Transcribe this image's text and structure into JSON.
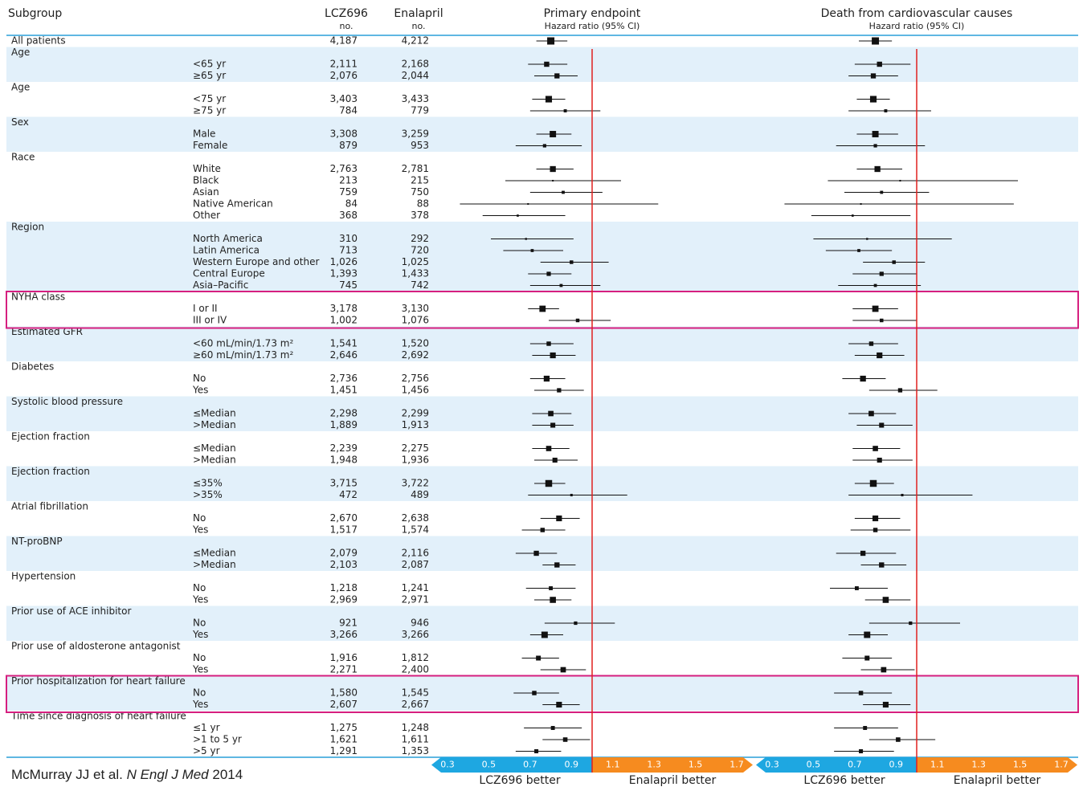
{
  "chart_data": {
    "type": "forest",
    "headers": {
      "subgroup": "Subgroup",
      "lcz": "LCZ696",
      "enal": "Enalapril",
      "no": "no."
    },
    "panels": [
      {
        "title": "Primary endpoint",
        "subtitle": "Hazard ratio (95% CI)",
        "better_left": "LCZ696 better",
        "better_right": "Enalapril better"
      },
      {
        "title": "Death from cardiovascular causes",
        "subtitle": "Hazard ratio (95% CI)",
        "better_left": "LCZ696 better",
        "better_right": "Enalapril better"
      }
    ],
    "xlim": [
      0.3,
      1.7
    ],
    "xticks": [
      0.3,
      0.5,
      0.7,
      0.9,
      1.1,
      1.3,
      1.5,
      1.7
    ],
    "reference": 1,
    "colors": {
      "better_left": "#1ea7e1",
      "better_right": "#f68b1f",
      "reference": "#e0201f",
      "band": "#e2f0fa",
      "highlight": "#d61f7f",
      "rule": "#2a9fd8"
    },
    "groups": [
      {
        "label": "All patients",
        "n": [
          "4,187",
          "4,212"
        ],
        "est": [
          [
            0.8,
            0.73,
            0.88
          ],
          [
            0.8,
            0.72,
            0.88
          ]
        ]
      },
      {
        "label": "Age",
        "items": [
          {
            "label": "<65 yr",
            "n": [
              "2,111",
              "2,168"
            ],
            "est": [
              [
                0.78,
                0.69,
                0.88
              ],
              [
                0.82,
                0.7,
                0.97
              ]
            ]
          },
          {
            "label": "≥65 yr",
            "n": [
              "2,076",
              "2,044"
            ],
            "est": [
              [
                0.83,
                0.72,
                0.93
              ],
              [
                0.79,
                0.67,
                0.91
              ]
            ]
          }
        ]
      },
      {
        "label": "Age",
        "items": [
          {
            "label": "<75 yr",
            "n": [
              "3,403",
              "3,433"
            ],
            "est": [
              [
                0.79,
                0.71,
                0.87
              ],
              [
                0.79,
                0.71,
                0.87
              ]
            ]
          },
          {
            "label": "≥75 yr",
            "n": [
              "784",
              "779"
            ],
            "est": [
              [
                0.87,
                0.7,
                1.04
              ],
              [
                0.85,
                0.67,
                1.07
              ]
            ]
          }
        ]
      },
      {
        "label": "Sex",
        "items": [
          {
            "label": "Male",
            "n": [
              "3,308",
              "3,259"
            ],
            "est": [
              [
                0.81,
                0.73,
                0.9
              ],
              [
                0.8,
                0.71,
                0.91
              ]
            ]
          },
          {
            "label": "Female",
            "n": [
              "879",
              "953"
            ],
            "est": [
              [
                0.77,
                0.63,
                0.95
              ],
              [
                0.8,
                0.61,
                1.04
              ]
            ]
          }
        ]
      },
      {
        "label": "Race",
        "items": [
          {
            "label": "White",
            "n": [
              "2,763",
              "2,781"
            ],
            "est": [
              [
                0.81,
                0.73,
                0.91
              ],
              [
                0.81,
                0.71,
                0.93
              ]
            ]
          },
          {
            "label": "Black",
            "n": [
              "213",
              "215"
            ],
            "est": [
              [
                0.81,
                0.58,
                1.14
              ],
              [
                0.92,
                0.57,
                1.49
              ]
            ]
          },
          {
            "label": "Asian",
            "n": [
              "759",
              "750"
            ],
            "est": [
              [
                0.86,
                0.7,
                1.05
              ],
              [
                0.83,
                0.65,
                1.06
              ]
            ]
          },
          {
            "label": "Native American",
            "n": [
              "84",
              "88"
            ],
            "est": [
              [
                0.69,
                0.36,
                1.32
              ],
              [
                0.73,
                0.36,
                1.47
              ]
            ]
          },
          {
            "label": "Other",
            "n": [
              "368",
              "378"
            ],
            "est": [
              [
                0.64,
                0.47,
                0.87
              ],
              [
                0.69,
                0.49,
                0.97
              ]
            ]
          }
        ]
      },
      {
        "label": "Region",
        "items": [
          {
            "label": "North America",
            "n": [
              "310",
              "292"
            ],
            "est": [
              [
                0.68,
                0.51,
                0.91
              ],
              [
                0.76,
                0.5,
                1.17
              ]
            ]
          },
          {
            "label": "Latin America",
            "n": [
              "713",
              "720"
            ],
            "est": [
              [
                0.71,
                0.57,
                0.86
              ],
              [
                0.72,
                0.56,
                0.88
              ]
            ]
          },
          {
            "label": "Western Europe and other",
            "n": [
              "1,026",
              "1,025"
            ],
            "est": [
              [
                0.9,
                0.75,
                1.08
              ],
              [
                0.89,
                0.74,
                1.04
              ]
            ]
          },
          {
            "label": "Central Europe",
            "n": [
              "1,393",
              "1,433"
            ],
            "est": [
              [
                0.79,
                0.69,
                0.9
              ],
              [
                0.83,
                0.69,
                1.0
              ]
            ]
          },
          {
            "label": "Asia–Pacific",
            "n": [
              "745",
              "742"
            ],
            "est": [
              [
                0.85,
                0.7,
                1.04
              ],
              [
                0.8,
                0.62,
                1.02
              ]
            ]
          }
        ]
      },
      {
        "label": "NYHA class",
        "highlighted": true,
        "items": [
          {
            "label": "I or II",
            "n": [
              "3,178",
              "3,130"
            ],
            "est": [
              [
                0.76,
                0.69,
                0.84
              ],
              [
                0.8,
                0.69,
                0.91
              ]
            ]
          },
          {
            "label": "III or IV",
            "n": [
              "1,002",
              "1,076"
            ],
            "est": [
              [
                0.93,
                0.79,
                1.09
              ],
              [
                0.83,
                0.69,
                1.0
              ]
            ]
          }
        ]
      },
      {
        "label": "Estimated GFR",
        "items": [
          {
            "label": "<60 mL/min/1.73 m²",
            "n": [
              "1,541",
              "1,520"
            ],
            "est": [
              [
                0.79,
                0.7,
                0.91
              ],
              [
                0.78,
                0.67,
                0.91
              ]
            ]
          },
          {
            "label": "≥60 mL/min/1.73 m²",
            "n": [
              "2,646",
              "2,692"
            ],
            "est": [
              [
                0.81,
                0.71,
                0.92
              ],
              [
                0.82,
                0.7,
                0.94
              ]
            ]
          }
        ]
      },
      {
        "label": "Diabetes",
        "items": [
          {
            "label": "No",
            "n": [
              "2,736",
              "2,756"
            ],
            "est": [
              [
                0.78,
                0.7,
                0.87
              ],
              [
                0.74,
                0.64,
                0.85
              ]
            ]
          },
          {
            "label": "Yes",
            "n": [
              "1,451",
              "1,456"
            ],
            "est": [
              [
                0.84,
                0.72,
                0.96
              ],
              [
                0.92,
                0.77,
                1.1
              ]
            ]
          }
        ]
      },
      {
        "label": "Systolic blood pressure",
        "items": [
          {
            "label": "≤Median",
            "n": [
              "2,298",
              "2,299"
            ],
            "est": [
              [
                0.8,
                0.71,
                0.9
              ],
              [
                0.78,
                0.67,
                0.9
              ]
            ]
          },
          {
            "label": ">Median",
            "n": [
              "1,889",
              "1,913"
            ],
            "est": [
              [
                0.81,
                0.71,
                0.91
              ],
              [
                0.83,
                0.71,
                0.98
              ]
            ]
          }
        ]
      },
      {
        "label": "Ejection fraction",
        "items": [
          {
            "label": "≤Median",
            "n": [
              "2,239",
              "2,275"
            ],
            "est": [
              [
                0.79,
                0.71,
                0.89
              ],
              [
                0.8,
                0.69,
                0.92
              ]
            ]
          },
          {
            "label": ">Median",
            "n": [
              "1,948",
              "1,936"
            ],
            "est": [
              [
                0.82,
                0.72,
                0.93
              ],
              [
                0.82,
                0.69,
                0.98
              ]
            ]
          }
        ]
      },
      {
        "label": "Ejection fraction",
        "items": [
          {
            "label": "≤35%",
            "n": [
              "3,715",
              "3,722"
            ],
            "est": [
              [
                0.79,
                0.72,
                0.87
              ],
              [
                0.79,
                0.7,
                0.89
              ]
            ]
          },
          {
            "label": ">35%",
            "n": [
              "472",
              "489"
            ],
            "est": [
              [
                0.9,
                0.69,
                1.17
              ],
              [
                0.93,
                0.67,
                1.27
              ]
            ]
          }
        ]
      },
      {
        "label": "Atrial fibrillation",
        "items": [
          {
            "label": "No",
            "n": [
              "2,670",
              "2,638"
            ],
            "est": [
              [
                0.84,
                0.75,
                0.94
              ],
              [
                0.8,
                0.7,
                0.92
              ]
            ]
          },
          {
            "label": "Yes",
            "n": [
              "1,517",
              "1,574"
            ],
            "est": [
              [
                0.76,
                0.66,
                0.87
              ],
              [
                0.8,
                0.68,
                0.97
              ]
            ]
          }
        ]
      },
      {
        "label": "NT-proBNP",
        "items": [
          {
            "label": "≤Median",
            "n": [
              "2,079",
              "2,116"
            ],
            "est": [
              [
                0.73,
                0.63,
                0.83
              ],
              [
                0.74,
                0.61,
                0.9
              ]
            ]
          },
          {
            "label": ">Median",
            "n": [
              "2,103",
              "2,087"
            ],
            "est": [
              [
                0.83,
                0.76,
                0.92
              ],
              [
                0.83,
                0.73,
                0.95
              ]
            ]
          }
        ]
      },
      {
        "label": "Hypertension",
        "items": [
          {
            "label": "No",
            "n": [
              "1,218",
              "1,241"
            ],
            "est": [
              [
                0.8,
                0.68,
                0.92
              ],
              [
                0.71,
                0.58,
                0.86
              ]
            ]
          },
          {
            "label": "Yes",
            "n": [
              "2,969",
              "2,971"
            ],
            "est": [
              [
                0.81,
                0.72,
                0.9
              ],
              [
                0.85,
                0.75,
                0.97
              ]
            ]
          }
        ]
      },
      {
        "label": "Prior use of ACE inhibitor",
        "items": [
          {
            "label": "No",
            "n": [
              "921",
              "946"
            ],
            "est": [
              [
                0.92,
                0.77,
                1.11
              ],
              [
                0.97,
                0.77,
                1.21
              ]
            ]
          },
          {
            "label": "Yes",
            "n": [
              "3,266",
              "3,266"
            ],
            "est": [
              [
                0.77,
                0.7,
                0.86
              ],
              [
                0.76,
                0.67,
                0.86
              ]
            ]
          }
        ]
      },
      {
        "label": "Prior use of aldosterone antagonist",
        "items": [
          {
            "label": "No",
            "n": [
              "1,916",
              "1,812"
            ],
            "est": [
              [
                0.74,
                0.66,
                0.84
              ],
              [
                0.76,
                0.64,
                0.88
              ]
            ]
          },
          {
            "label": "Yes",
            "n": [
              "2,271",
              "2,400"
            ],
            "est": [
              [
                0.86,
                0.75,
                0.97
              ],
              [
                0.84,
                0.73,
                0.99
              ]
            ]
          }
        ]
      },
      {
        "label": "Prior hospitalization for heart failure",
        "highlighted": true,
        "items": [
          {
            "label": "No",
            "n": [
              "1,580",
              "1,545"
            ],
            "est": [
              [
                0.72,
                0.62,
                0.84
              ],
              [
                0.73,
                0.6,
                0.88
              ]
            ]
          },
          {
            "label": "Yes",
            "n": [
              "2,607",
              "2,667"
            ],
            "est": [
              [
                0.84,
                0.76,
                0.94
              ],
              [
                0.85,
                0.74,
                0.97
              ]
            ]
          }
        ]
      },
      {
        "label": "Time since diagnosis of heart failure",
        "items": [
          {
            "label": "≤1 yr",
            "n": [
              "1,275",
              "1,248"
            ],
            "est": [
              [
                0.81,
                0.67,
                0.95
              ],
              [
                0.75,
                0.6,
                0.91
              ]
            ]
          },
          {
            "label": ">1 to 5 yr",
            "n": [
              "1,621",
              "1,611"
            ],
            "est": [
              [
                0.87,
                0.76,
                0.99
              ],
              [
                0.91,
                0.77,
                1.09
              ]
            ]
          },
          {
            "label": ">5 yr",
            "n": [
              "1,291",
              "1,353"
            ],
            "est": [
              [
                0.73,
                0.63,
                0.85
              ],
              [
                0.73,
                0.6,
                0.89
              ]
            ]
          }
        ]
      }
    ],
    "citation": {
      "authors": "McMurray JJ et al.",
      "journal": "N Engl J Med",
      "year": "2014"
    }
  }
}
